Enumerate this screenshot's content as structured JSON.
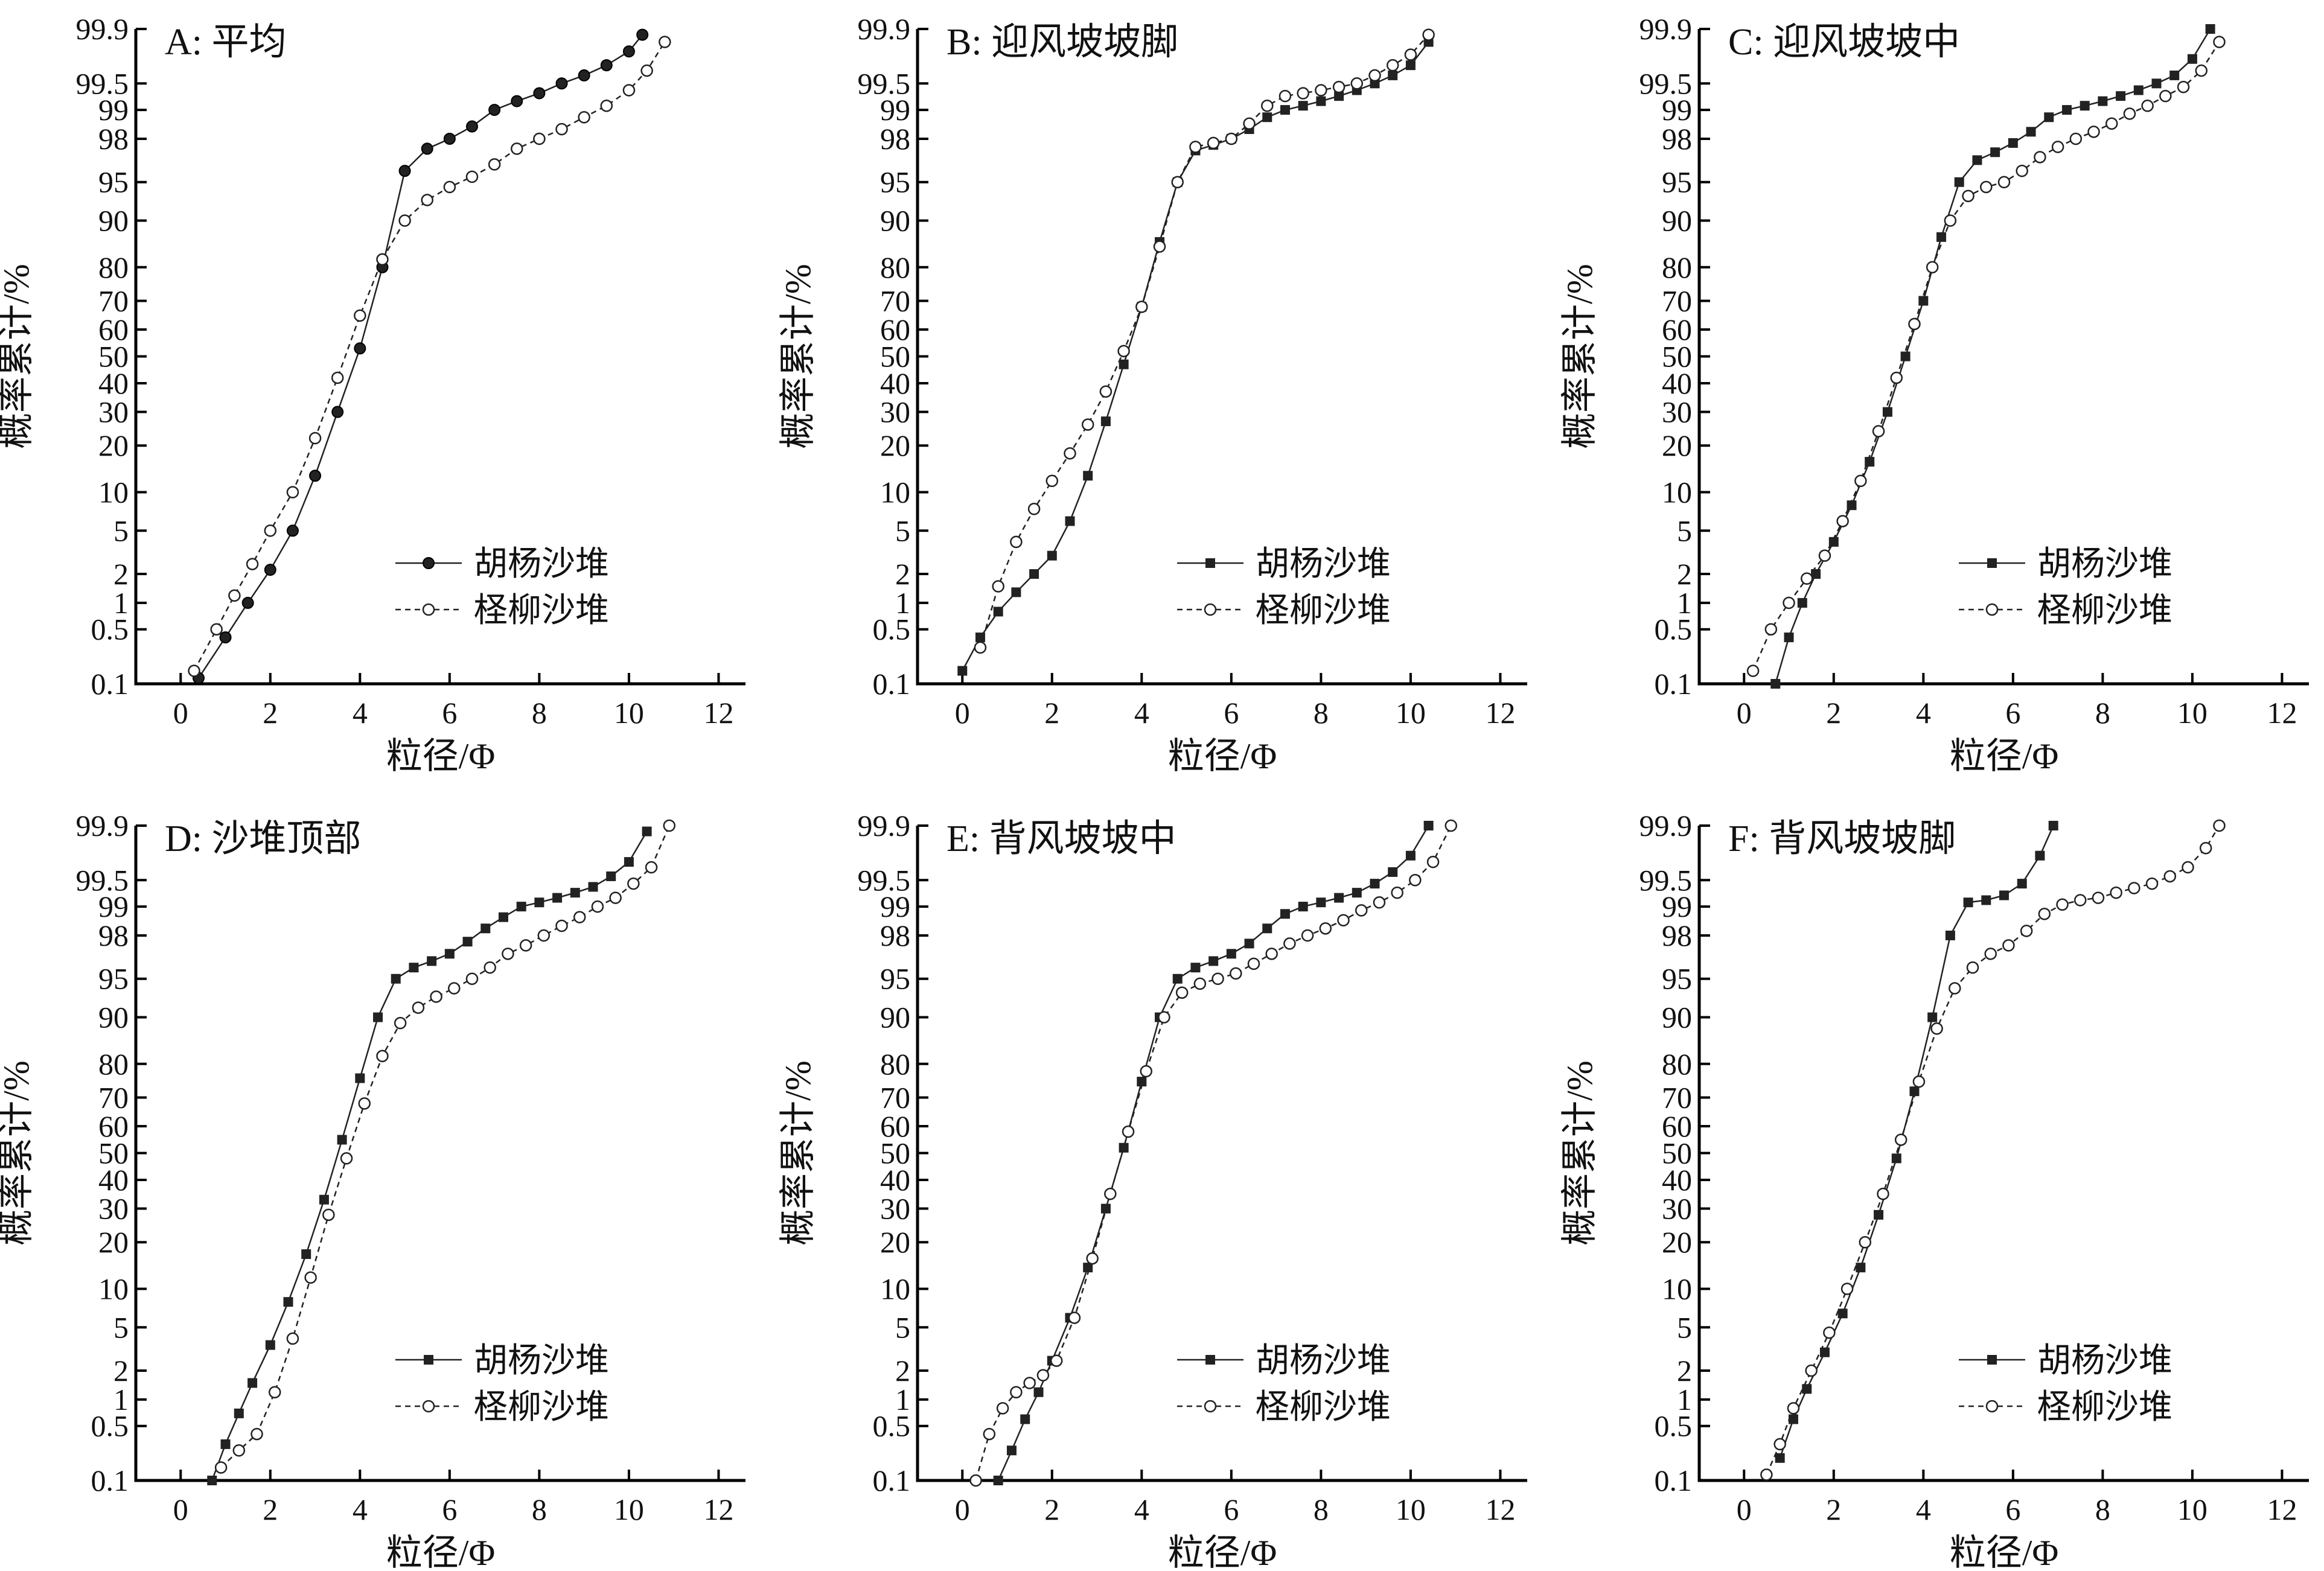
{
  "colors": {
    "background": "#ffffff",
    "ink": "#000000",
    "series_fill": "#222222",
    "series_hollow": "#ffffff"
  },
  "legend_labels": [
    "胡杨沙堆",
    "柽柳沙堆"
  ],
  "marker_styles": [
    "filled-square",
    "hollow-circle"
  ],
  "chart_data": [
    {
      "type": "line",
      "panel_label": "A: 平均",
      "xlabel": "粒径/Φ",
      "ylabel": "概率累计/%",
      "xlim": [
        -1,
        12.6
      ],
      "x_ticks": [
        "0",
        "2",
        "4",
        "6",
        "8",
        "10",
        "12"
      ],
      "y_scale": "probability",
      "y_ticks": [
        "0.1",
        "0.5",
        "1",
        "2",
        "5",
        "10",
        "20",
        "30",
        "40",
        "50",
        "60",
        "70",
        "80",
        "90",
        "95",
        "98",
        "99",
        "99.5",
        "99.9"
      ],
      "legend_position": "lower-right",
      "marker_override": "filled-circle",
      "series": [
        {
          "name": "胡杨沙堆",
          "x": [
            0.4,
            1.0,
            1.5,
            2.0,
            2.5,
            3.0,
            3.5,
            4.0,
            4.5,
            5.0,
            5.5,
            6.0,
            6.5,
            7.0,
            7.5,
            8.0,
            8.5,
            9.0,
            9.5,
            10.0,
            10.3
          ],
          "y": [
            0.12,
            0.4,
            1.0,
            2.2,
            5.0,
            13,
            30,
            53,
            80,
            96,
            97.5,
            98,
            98.5,
            99,
            99.2,
            99.35,
            99.5,
            99.6,
            99.7,
            99.8,
            99.88
          ]
        },
        {
          "name": "柽柳沙堆",
          "x": [
            0.3,
            0.8,
            1.2,
            1.6,
            2.0,
            2.5,
            3.0,
            3.5,
            4.0,
            4.5,
            5.0,
            5.5,
            6.0,
            6.5,
            7.0,
            7.5,
            8.0,
            8.5,
            9.0,
            9.5,
            10.0,
            10.4,
            10.8
          ],
          "y": [
            0.15,
            0.5,
            1.2,
            2.5,
            5.0,
            10,
            22,
            42,
            65,
            82,
            90,
            93,
            94.5,
            95.5,
            96.5,
            97.5,
            98,
            98.4,
            98.8,
            99.1,
            99.4,
            99.65,
            99.85
          ]
        }
      ]
    },
    {
      "type": "line",
      "panel_label": "B: 迎风坡坡脚",
      "xlabel": "粒径/Φ",
      "ylabel": "概率累计/%",
      "xlim": [
        -1,
        12.6
      ],
      "x_ticks": [
        "0",
        "2",
        "4",
        "6",
        "8",
        "10",
        "12"
      ],
      "y_scale": "probability",
      "y_ticks": [
        "0.1",
        "0.5",
        "1",
        "2",
        "5",
        "10",
        "20",
        "30",
        "40",
        "50",
        "60",
        "70",
        "80",
        "90",
        "95",
        "98",
        "99",
        "99.5",
        "99.9"
      ],
      "legend_position": "lower-right",
      "series": [
        {
          "name": "胡杨沙堆",
          "x": [
            0.0,
            0.4,
            0.8,
            1.2,
            1.6,
            2.0,
            2.4,
            2.8,
            3.2,
            3.6,
            4.0,
            4.4,
            4.8,
            5.2,
            5.6,
            6.0,
            6.4,
            6.8,
            7.2,
            7.6,
            8.0,
            8.4,
            8.8,
            9.2,
            9.6,
            10.0,
            10.4
          ],
          "y": [
            0.15,
            0.4,
            0.8,
            1.3,
            2.0,
            3.0,
            6.0,
            13,
            27,
            47,
            68,
            86,
            95,
            97.4,
            97.7,
            98,
            98.4,
            98.8,
            99.0,
            99.1,
            99.2,
            99.3,
            99.4,
            99.5,
            99.6,
            99.7,
            99.85
          ]
        },
        {
          "name": "柽柳沙堆",
          "x": [
            0.4,
            0.8,
            1.2,
            1.6,
            2.0,
            2.4,
            2.8,
            3.2,
            3.6,
            4.0,
            4.4,
            4.8,
            5.2,
            5.6,
            6.0,
            6.4,
            6.8,
            7.2,
            7.6,
            8.0,
            8.4,
            8.8,
            9.2,
            9.6,
            10.0,
            10.4
          ],
          "y": [
            0.3,
            1.5,
            4.0,
            7.5,
            12,
            18,
            26,
            37,
            52,
            68,
            85,
            95,
            97.6,
            97.8,
            98,
            98.6,
            99.1,
            99.3,
            99.35,
            99.4,
            99.45,
            99.5,
            99.6,
            99.7,
            99.78,
            99.88
          ]
        }
      ]
    },
    {
      "type": "line",
      "panel_label": "C: 迎风坡坡中",
      "xlabel": "粒径/Φ",
      "ylabel": "概率累计/%",
      "xlim": [
        -1,
        12.6
      ],
      "x_ticks": [
        "0",
        "2",
        "4",
        "6",
        "8",
        "10",
        "12"
      ],
      "y_scale": "probability",
      "y_ticks": [
        "0.1",
        "0.5",
        "1",
        "2",
        "5",
        "10",
        "20",
        "30",
        "40",
        "50",
        "60",
        "70",
        "80",
        "90",
        "95",
        "98",
        "99",
        "99.5",
        "99.9"
      ],
      "legend_position": "lower-right",
      "series": [
        {
          "name": "胡杨沙堆",
          "x": [
            0.7,
            1.0,
            1.3,
            1.6,
            2.0,
            2.4,
            2.8,
            3.2,
            3.6,
            4.0,
            4.4,
            4.8,
            5.2,
            5.6,
            6.0,
            6.4,
            6.8,
            7.2,
            7.6,
            8.0,
            8.4,
            8.8,
            9.2,
            9.6,
            10.0,
            10.4
          ],
          "y": [
            0.1,
            0.4,
            1.0,
            2.0,
            4.0,
            8.0,
            16,
            30,
            50,
            70,
            87,
            95,
            96.8,
            97.3,
            97.8,
            98.3,
            98.8,
            99.0,
            99.1,
            99.2,
            99.3,
            99.4,
            99.5,
            99.6,
            99.75,
            99.9
          ]
        },
        {
          "name": "柽柳沙堆",
          "x": [
            0.2,
            0.6,
            1.0,
            1.4,
            1.8,
            2.2,
            2.6,
            3.0,
            3.4,
            3.8,
            4.2,
            4.6,
            5.0,
            5.4,
            5.8,
            6.2,
            6.6,
            7.0,
            7.4,
            7.8,
            8.2,
            8.6,
            9.0,
            9.4,
            9.8,
            10.2,
            10.6
          ],
          "y": [
            0.15,
            0.5,
            1.0,
            1.8,
            3.0,
            6.0,
            12,
            24,
            42,
            62,
            80,
            90,
            93.5,
            94.5,
            95,
            96,
            97,
            97.6,
            98,
            98.3,
            98.6,
            98.9,
            99.1,
            99.3,
            99.45,
            99.65,
            99.85
          ]
        }
      ]
    },
    {
      "type": "line",
      "panel_label": "D: 沙堆顶部",
      "xlabel": "粒径/Φ",
      "ylabel": "概率累计/%",
      "xlim": [
        -1,
        12.6
      ],
      "x_ticks": [
        "0",
        "2",
        "4",
        "6",
        "8",
        "10",
        "12"
      ],
      "y_scale": "probability",
      "y_ticks": [
        "0.1",
        "0.5",
        "1",
        "2",
        "5",
        "10",
        "20",
        "30",
        "40",
        "50",
        "60",
        "70",
        "80",
        "90",
        "95",
        "98",
        "99",
        "99.5",
        "99.9"
      ],
      "legend_position": "lower-right",
      "series": [
        {
          "name": "胡杨沙堆",
          "x": [
            0.7,
            1.0,
            1.3,
            1.6,
            2.0,
            2.4,
            2.8,
            3.2,
            3.6,
            4.0,
            4.4,
            4.8,
            5.2,
            5.6,
            6.0,
            6.4,
            6.8,
            7.2,
            7.6,
            8.0,
            8.4,
            8.8,
            9.2,
            9.6,
            10.0,
            10.4
          ],
          "y": [
            0.1,
            0.3,
            0.7,
            1.5,
            3.5,
            8.0,
            17,
            33,
            55,
            76,
            90,
            95,
            96,
            96.5,
            97,
            97.7,
            98.3,
            98.7,
            99.0,
            99.1,
            99.2,
            99.3,
            99.4,
            99.55,
            99.7,
            99.88
          ]
        },
        {
          "name": "柽柳沙堆",
          "x": [
            0.9,
            1.3,
            1.7,
            2.1,
            2.5,
            2.9,
            3.3,
            3.7,
            4.1,
            4.5,
            4.9,
            5.3,
            5.7,
            6.1,
            6.5,
            6.9,
            7.3,
            7.7,
            8.1,
            8.5,
            8.9,
            9.3,
            9.7,
            10.1,
            10.5,
            10.9
          ],
          "y": [
            0.15,
            0.25,
            0.4,
            1.2,
            4.0,
            12,
            28,
            48,
            68,
            82,
            89,
            91.5,
            93,
            94,
            95,
            96,
            97,
            97.5,
            98,
            98.4,
            98.7,
            99.0,
            99.2,
            99.45,
            99.65,
            99.9
          ]
        }
      ]
    },
    {
      "type": "line",
      "panel_label": "E: 背风坡坡中",
      "xlabel": "粒径/Φ",
      "ylabel": "概率累计/%",
      "xlim": [
        -1,
        12.6
      ],
      "x_ticks": [
        "0",
        "2",
        "4",
        "6",
        "8",
        "10",
        "12"
      ],
      "y_scale": "probability",
      "y_ticks": [
        "0.1",
        "0.5",
        "1",
        "2",
        "5",
        "10",
        "20",
        "30",
        "40",
        "50",
        "60",
        "70",
        "80",
        "90",
        "95",
        "98",
        "99",
        "99.5",
        "99.9"
      ],
      "legend_position": "lower-right",
      "series": [
        {
          "name": "胡杨沙堆",
          "x": [
            0.8,
            1.1,
            1.4,
            1.7,
            2.0,
            2.4,
            2.8,
            3.2,
            3.6,
            4.0,
            4.4,
            4.8,
            5.2,
            5.6,
            6.0,
            6.4,
            6.8,
            7.2,
            7.6,
            8.0,
            8.4,
            8.8,
            9.2,
            9.6,
            10.0,
            10.4
          ],
          "y": [
            0.1,
            0.25,
            0.6,
            1.2,
            2.5,
            6.0,
            14,
            30,
            52,
            75,
            90,
            95,
            96,
            96.5,
            97,
            97.6,
            98.3,
            98.8,
            99.0,
            99.1,
            99.2,
            99.3,
            99.45,
            99.6,
            99.75,
            99.9
          ]
        },
        {
          "name": "柽柳沙堆",
          "x": [
            0.3,
            0.6,
            0.9,
            1.2,
            1.5,
            1.8,
            2.1,
            2.5,
            2.9,
            3.3,
            3.7,
            4.1,
            4.5,
            4.9,
            5.3,
            5.7,
            6.1,
            6.5,
            6.9,
            7.3,
            7.7,
            8.1,
            8.5,
            8.9,
            9.3,
            9.7,
            10.1,
            10.5,
            10.9
          ],
          "y": [
            0.1,
            0.4,
            0.8,
            1.2,
            1.5,
            1.8,
            2.5,
            6.0,
            16,
            35,
            58,
            78,
            90,
            93.5,
            94.5,
            95,
            95.5,
            96.3,
            97,
            97.6,
            98,
            98.3,
            98.6,
            98.9,
            99.1,
            99.3,
            99.5,
            99.7,
            99.9
          ]
        }
      ]
    },
    {
      "type": "line",
      "panel_label": "F: 背风坡坡脚",
      "xlabel": "粒径/Φ",
      "ylabel": "概率累计/%",
      "xlim": [
        -1,
        12.6
      ],
      "x_ticks": [
        "0",
        "2",
        "4",
        "6",
        "8",
        "10",
        "12"
      ],
      "y_scale": "probability",
      "y_ticks": [
        "0.1",
        "0.5",
        "1",
        "2",
        "5",
        "10",
        "20",
        "30",
        "40",
        "50",
        "60",
        "70",
        "80",
        "90",
        "95",
        "98",
        "99",
        "99.5",
        "99.9"
      ],
      "legend_position": "lower-right",
      "series": [
        {
          "name": "胡杨沙堆",
          "x": [
            0.8,
            1.1,
            1.4,
            1.8,
            2.2,
            2.6,
            3.0,
            3.4,
            3.8,
            4.2,
            4.6,
            5.0,
            5.4,
            5.8,
            6.2,
            6.6,
            6.9
          ],
          "y": [
            0.2,
            0.6,
            1.3,
            3.0,
            6.5,
            14,
            28,
            48,
            72,
            90,
            98,
            99.1,
            99.15,
            99.25,
            99.45,
            99.75,
            99.9
          ]
        },
        {
          "name": "柽柳沙堆",
          "x": [
            0.5,
            0.8,
            1.1,
            1.5,
            1.9,
            2.3,
            2.7,
            3.1,
            3.5,
            3.9,
            4.3,
            4.7,
            5.1,
            5.5,
            5.9,
            6.3,
            6.7,
            7.1,
            7.5,
            7.9,
            8.3,
            8.7,
            9.1,
            9.5,
            9.9,
            10.3,
            10.6
          ],
          "y": [
            0.12,
            0.3,
            0.8,
            2.0,
            4.5,
            10,
            20,
            35,
            55,
            75,
            88,
            94,
            96,
            97,
            97.5,
            98.2,
            98.8,
            99.05,
            99.15,
            99.2,
            99.3,
            99.38,
            99.45,
            99.55,
            99.65,
            99.8,
            99.9
          ]
        }
      ]
    }
  ]
}
